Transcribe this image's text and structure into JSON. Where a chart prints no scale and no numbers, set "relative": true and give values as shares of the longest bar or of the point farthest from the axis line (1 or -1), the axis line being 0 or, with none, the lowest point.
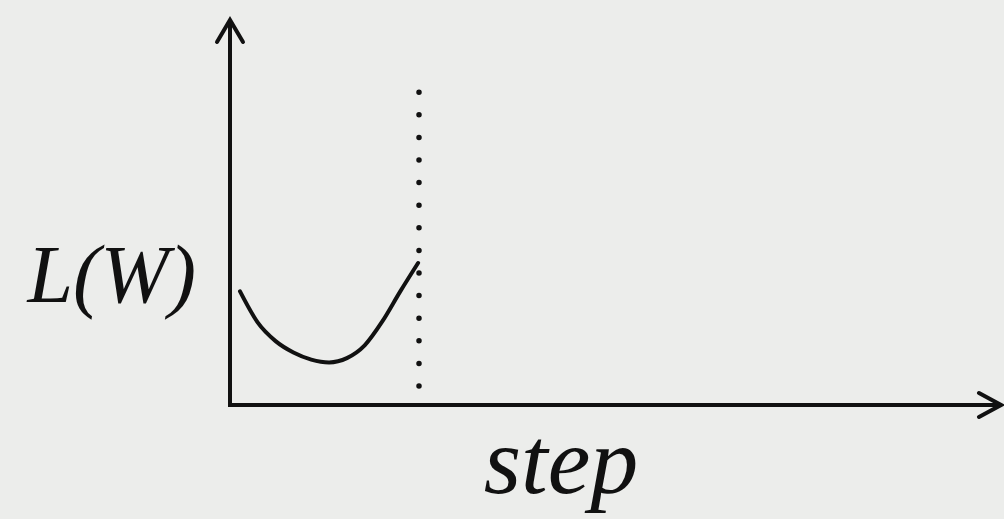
{
  "chart_data": {
    "type": "line",
    "xlabel": "step",
    "ylabel": "L(W)",
    "relative": true,
    "categories": [
      null,
      null,
      null,
      null,
      null,
      null,
      null,
      null,
      null,
      null,
      null,
      null,
      null,
      null,
      null,
      null,
      null,
      null,
      null,
      null,
      null,
      null,
      null,
      null,
      null,
      null,
      null,
      null,
      null,
      null,
      null,
      null,
      null,
      null,
      null,
      null,
      null,
      null,
      null,
      null,
      null,
      null,
      null
    ],
    "series": [
      {
        "color": "#111111",
        "values": [
          0.8,
          0.58,
          0.45,
          0.37,
          0.32,
          0.3,
          0.33,
          0.42,
          0.59,
          0.8,
          1,
          null,
          null,
          null,
          null,
          null,
          null,
          null,
          null,
          null,
          null,
          null,
          null,
          null,
          null,
          null,
          null,
          null,
          null,
          null,
          null,
          null,
          null,
          null,
          null,
          null,
          null,
          null,
          null,
          null,
          null,
          null,
          null
        ]
      }
    ]
  }
}
